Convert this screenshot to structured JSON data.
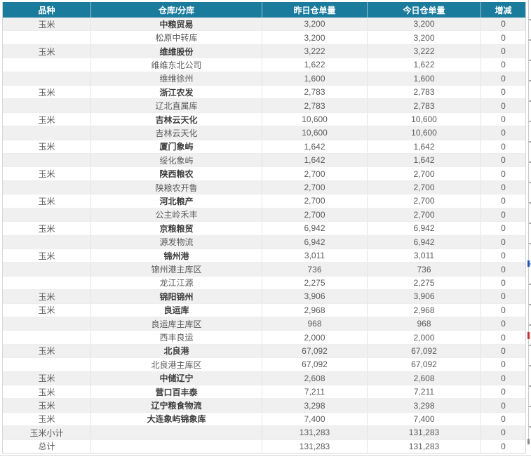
{
  "colors": {
    "header_bg": "#1b7b9d",
    "header_text": "#ffffff",
    "row_alt_bg": "#f0f0f1"
  },
  "header": {
    "columns": [
      "品种",
      "仓库/分库",
      "昨日仓单量",
      "今日仓单量",
      "增减"
    ]
  },
  "table": {
    "rows": [
      {
        "kind": "parent",
        "variety": "玉米",
        "warehouse": "中粮贸易",
        "yesterday": "3,200",
        "today": "3,200",
        "change": "0"
      },
      {
        "kind": "child",
        "variety": "",
        "warehouse": "松原中转库",
        "yesterday": "3,200",
        "today": "3,200",
        "change": "0"
      },
      {
        "kind": "parent",
        "variety": "玉米",
        "warehouse": "维维股份",
        "yesterday": "3,222",
        "today": "3,222",
        "change": "0"
      },
      {
        "kind": "child",
        "variety": "",
        "warehouse": "维维东北公司",
        "yesterday": "1,622",
        "today": "1,622",
        "change": "0"
      },
      {
        "kind": "child",
        "variety": "",
        "warehouse": "维维徐州",
        "yesterday": "1,600",
        "today": "1,600",
        "change": "0"
      },
      {
        "kind": "parent",
        "variety": "玉米",
        "warehouse": "浙江农发",
        "yesterday": "2,783",
        "today": "2,783",
        "change": "0"
      },
      {
        "kind": "child",
        "variety": "",
        "warehouse": "辽北直属库",
        "yesterday": "2,783",
        "today": "2,783",
        "change": "0"
      },
      {
        "kind": "parent",
        "variety": "玉米",
        "warehouse": "吉林云天化",
        "yesterday": "10,600",
        "today": "10,600",
        "change": "0"
      },
      {
        "kind": "child",
        "variety": "",
        "warehouse": "吉林云天化",
        "yesterday": "10,600",
        "today": "10,600",
        "change": "0"
      },
      {
        "kind": "parent",
        "variety": "玉米",
        "warehouse": "厦门象屿",
        "yesterday": "1,642",
        "today": "1,642",
        "change": "0"
      },
      {
        "kind": "child",
        "variety": "",
        "warehouse": "绥化象屿",
        "yesterday": "1,642",
        "today": "1,642",
        "change": "0"
      },
      {
        "kind": "parent",
        "variety": "玉米",
        "warehouse": "陕西粮农",
        "yesterday": "2,700",
        "today": "2,700",
        "change": "0"
      },
      {
        "kind": "child",
        "variety": "",
        "warehouse": "陕粮农开鲁",
        "yesterday": "2,700",
        "today": "2,700",
        "change": "0"
      },
      {
        "kind": "parent",
        "variety": "玉米",
        "warehouse": "河北粮产",
        "yesterday": "2,700",
        "today": "2,700",
        "change": "0"
      },
      {
        "kind": "child",
        "variety": "",
        "warehouse": "公主岭禾丰",
        "yesterday": "2,700",
        "today": "2,700",
        "change": "0"
      },
      {
        "kind": "parent",
        "variety": "玉米",
        "warehouse": "京粮粮贸",
        "yesterday": "6,942",
        "today": "6,942",
        "change": "0"
      },
      {
        "kind": "child",
        "variety": "",
        "warehouse": "源发物流",
        "yesterday": "6,942",
        "today": "6,942",
        "change": "0"
      },
      {
        "kind": "parent",
        "variety": "玉米",
        "warehouse": "锦州港",
        "yesterday": "3,011",
        "today": "3,011",
        "change": "0"
      },
      {
        "kind": "child",
        "variety": "",
        "warehouse": "锦州港主库区",
        "yesterday": "736",
        "today": "736",
        "change": "0"
      },
      {
        "kind": "child",
        "variety": "",
        "warehouse": "龙江江源",
        "yesterday": "2,275",
        "today": "2,275",
        "change": "0"
      },
      {
        "kind": "parent",
        "variety": "玉米",
        "warehouse": "锦阳锦州",
        "yesterday": "3,906",
        "today": "3,906",
        "change": "0"
      },
      {
        "kind": "parent",
        "variety": "玉米",
        "warehouse": "良运库",
        "yesterday": "2,968",
        "today": "2,968",
        "change": "0"
      },
      {
        "kind": "child",
        "variety": "",
        "warehouse": "良运库主库区",
        "yesterday": "968",
        "today": "968",
        "change": "0"
      },
      {
        "kind": "child",
        "variety": "",
        "warehouse": "西丰良运",
        "yesterday": "2,000",
        "today": "2,000",
        "change": "0"
      },
      {
        "kind": "parent",
        "variety": "玉米",
        "warehouse": "北良港",
        "yesterday": "67,092",
        "today": "67,092",
        "change": "0"
      },
      {
        "kind": "child",
        "variety": "",
        "warehouse": "北良港主库区",
        "yesterday": "67,092",
        "today": "67,092",
        "change": "0"
      },
      {
        "kind": "parent",
        "variety": "玉米",
        "warehouse": "中储辽宁",
        "yesterday": "2,608",
        "today": "2,608",
        "change": "0"
      },
      {
        "kind": "parent",
        "variety": "玉米",
        "warehouse": "营口百丰泰",
        "yesterday": "7,211",
        "today": "7,211",
        "change": "0"
      },
      {
        "kind": "parent",
        "variety": "玉米",
        "warehouse": "辽宁粮食物流",
        "yesterday": "3,298",
        "today": "3,298",
        "change": "0"
      },
      {
        "kind": "parent",
        "variety": "玉米",
        "warehouse": "大连象屿锦象库",
        "yesterday": "7,400",
        "today": "7,400",
        "change": "0"
      },
      {
        "kind": "subtotal",
        "variety": "玉米小计",
        "warehouse": "",
        "yesterday": "131,283",
        "today": "131,283",
        "change": "0"
      },
      {
        "kind": "total",
        "variety": "总计",
        "warehouse": "",
        "yesterday": "131,283",
        "today": "131,283",
        "change": "0"
      }
    ]
  }
}
